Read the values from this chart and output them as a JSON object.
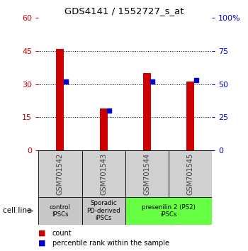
{
  "title": "GDS4141 / 1552727_s_at",
  "categories": [
    "GSM701542",
    "GSM701543",
    "GSM701544",
    "GSM701545"
  ],
  "count_values": [
    46,
    19,
    35,
    31
  ],
  "percentile_values": [
    52,
    30,
    52,
    53
  ],
  "left_ylim": [
    0,
    60
  ],
  "right_ylim": [
    0,
    100
  ],
  "left_yticks": [
    0,
    15,
    30,
    45,
    60
  ],
  "right_yticks": [
    0,
    25,
    50,
    75,
    100
  ],
  "right_yticklabels": [
    "0",
    "25",
    "50",
    "75",
    "100%"
  ],
  "bar_color": "#cc0000",
  "percentile_color": "#0000cc",
  "cell_line_groups": [
    {
      "label": "control\nIPSCs",
      "cols": [
        0
      ],
      "color": "#c8c8c8"
    },
    {
      "label": "Sporadic\nPD-derived\niPSCs",
      "cols": [
        1
      ],
      "color": "#c8c8c8"
    },
    {
      "label": "presenilin 2 (PS2)\niPSCs",
      "cols": [
        2,
        3
      ],
      "color": "#66ff44"
    }
  ],
  "sample_box_color": "#d0d0d0",
  "sample_label_color": "#404040",
  "left_tick_color": "#cc0000",
  "right_tick_color": "#0000cc",
  "bar_width": 0.18
}
